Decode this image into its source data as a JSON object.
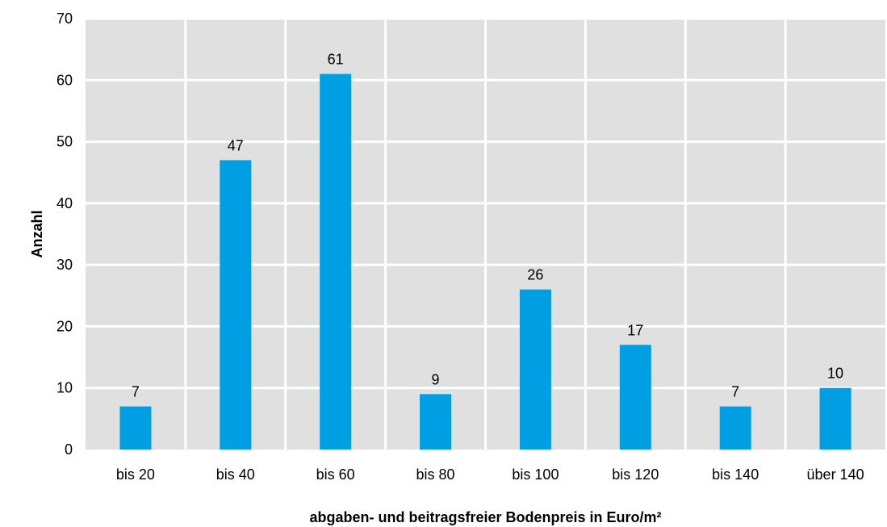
{
  "chart_data": {
    "type": "bar",
    "title": "",
    "xlabel": "abgaben- und beitragsfreier Bodenpreis in Euro/m²",
    "ylabel": "Anzahl",
    "categories": [
      "bis 20",
      "bis 40",
      "bis 60",
      "bis 80",
      "bis 100",
      "bis 120",
      "bis 140",
      "über 140"
    ],
    "values": [
      7,
      47,
      61,
      9,
      26,
      17,
      7,
      10
    ],
    "ylim": [
      0,
      70
    ],
    "yticks": [
      "0",
      "10",
      "20",
      "30",
      "40",
      "50",
      "60",
      "70"
    ],
    "data_labels": [
      "7",
      "47",
      "61",
      "9",
      "26",
      "17",
      "7",
      "10"
    ],
    "grid": true,
    "legend": "none",
    "colors": {
      "bar": "#009fe3",
      "plot_background": "#e0e0e0",
      "gridline": "#ffffff"
    }
  }
}
